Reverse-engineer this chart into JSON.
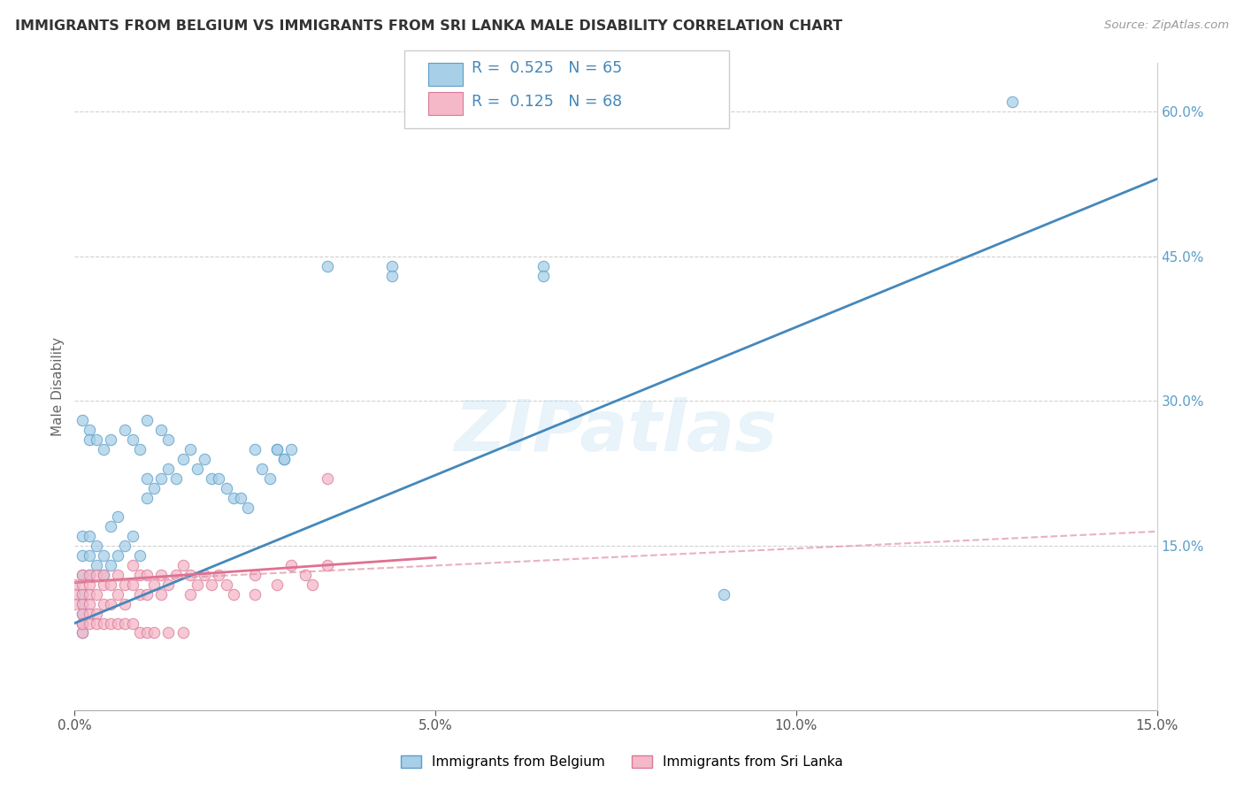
{
  "title": "IMMIGRANTS FROM BELGIUM VS IMMIGRANTS FROM SRI LANKA MALE DISABILITY CORRELATION CHART",
  "source": "Source: ZipAtlas.com",
  "ylabel": "Male Disability",
  "xlim": [
    0.0,
    0.15
  ],
  "ylim": [
    -0.02,
    0.65
  ],
  "x_ticks": [
    0.0,
    0.05,
    0.1,
    0.15
  ],
  "x_tick_labels": [
    "0.0%",
    "5.0%",
    "10.0%",
    "15.0%"
  ],
  "y_ticks_right": [
    0.15,
    0.3,
    0.45,
    0.6
  ],
  "y_tick_labels_right": [
    "15.0%",
    "30.0%",
    "45.0%",
    "60.0%"
  ],
  "belgium_color": "#a8cfe8",
  "belgium_color_edge": "#5b9ec9",
  "srilanka_color": "#f5b8c8",
  "srilanka_color_edge": "#d97a9a",
  "belgium_R": 0.525,
  "belgium_N": 65,
  "srilanka_R": 0.125,
  "srilanka_N": 68,
  "legend_label_belgium": "Immigrants from Belgium",
  "legend_label_srilanka": "Immigrants from Sri Lanka",
  "watermark": "ZIPatlas",
  "background_color": "#ffffff",
  "grid_color": "#cccccc",
  "title_color": "#333333",
  "axis_label_color": "#666666",
  "right_tick_color": "#5b9ec9",
  "belgium_line_color": "#4488bb",
  "srilanka_solid_color": "#e07090",
  "srilanka_dash_color": "#e090a8",
  "legend_text_color": "#4488bb",
  "belgium_pts_x": [
    0.001,
    0.001,
    0.001,
    0.002,
    0.002,
    0.002,
    0.003,
    0.003,
    0.004,
    0.004,
    0.005,
    0.005,
    0.006,
    0.006,
    0.007,
    0.008,
    0.009,
    0.01,
    0.01,
    0.011,
    0.012,
    0.013,
    0.014,
    0.015,
    0.016,
    0.017,
    0.018,
    0.019,
    0.02,
    0.021,
    0.022,
    0.023,
    0.024,
    0.025,
    0.026,
    0.027,
    0.028,
    0.029,
    0.03,
    0.001,
    0.002,
    0.002,
    0.003,
    0.004,
    0.005,
    0.007,
    0.008,
    0.009,
    0.01,
    0.012,
    0.013,
    0.028,
    0.029,
    0.035,
    0.044,
    0.044,
    0.065,
    0.065,
    0.09,
    0.13,
    0.001,
    0.001,
    0.001,
    0.001,
    0.001
  ],
  "belgium_pts_y": [
    0.12,
    0.14,
    0.16,
    0.12,
    0.14,
    0.16,
    0.13,
    0.15,
    0.12,
    0.14,
    0.13,
    0.17,
    0.14,
    0.18,
    0.15,
    0.16,
    0.14,
    0.2,
    0.22,
    0.21,
    0.22,
    0.23,
    0.22,
    0.24,
    0.25,
    0.23,
    0.24,
    0.22,
    0.22,
    0.21,
    0.2,
    0.2,
    0.19,
    0.25,
    0.23,
    0.22,
    0.25,
    0.24,
    0.25,
    0.28,
    0.27,
    0.26,
    0.26,
    0.25,
    0.26,
    0.27,
    0.26,
    0.25,
    0.28,
    0.27,
    0.26,
    0.25,
    0.24,
    0.44,
    0.44,
    0.43,
    0.44,
    0.43,
    0.1,
    0.61,
    0.1,
    0.09,
    0.08,
    0.07,
    0.06
  ],
  "srilanka_pts_x": [
    0.0,
    0.0,
    0.0,
    0.001,
    0.001,
    0.001,
    0.001,
    0.001,
    0.001,
    0.001,
    0.002,
    0.002,
    0.002,
    0.002,
    0.002,
    0.003,
    0.003,
    0.003,
    0.004,
    0.004,
    0.004,
    0.005,
    0.005,
    0.006,
    0.006,
    0.007,
    0.007,
    0.008,
    0.008,
    0.009,
    0.009,
    0.01,
    0.01,
    0.011,
    0.012,
    0.012,
    0.013,
    0.014,
    0.015,
    0.016,
    0.016,
    0.017,
    0.018,
    0.019,
    0.02,
    0.021,
    0.022,
    0.025,
    0.025,
    0.028,
    0.03,
    0.032,
    0.033,
    0.035,
    0.035,
    0.001,
    0.002,
    0.003,
    0.004,
    0.005,
    0.006,
    0.007,
    0.008,
    0.009,
    0.01,
    0.011,
    0.013,
    0.015
  ],
  "srilanka_pts_y": [
    0.11,
    0.1,
    0.09,
    0.12,
    0.11,
    0.1,
    0.09,
    0.08,
    0.07,
    0.06,
    0.12,
    0.11,
    0.1,
    0.09,
    0.08,
    0.12,
    0.1,
    0.08,
    0.12,
    0.11,
    0.09,
    0.11,
    0.09,
    0.12,
    0.1,
    0.11,
    0.09,
    0.13,
    0.11,
    0.12,
    0.1,
    0.12,
    0.1,
    0.11,
    0.12,
    0.1,
    0.11,
    0.12,
    0.13,
    0.12,
    0.1,
    0.11,
    0.12,
    0.11,
    0.12,
    0.11,
    0.1,
    0.12,
    0.1,
    0.11,
    0.13,
    0.12,
    0.11,
    0.13,
    0.22,
    0.07,
    0.07,
    0.07,
    0.07,
    0.07,
    0.07,
    0.07,
    0.07,
    0.06,
    0.06,
    0.06,
    0.06,
    0.06
  ]
}
